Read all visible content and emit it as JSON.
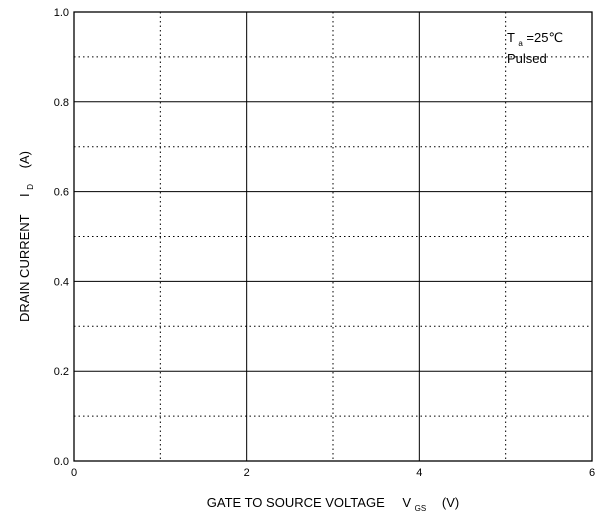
{
  "chart_data": {
    "type": "line",
    "title": "",
    "xlabel": {
      "main": "GATE TO SOURCE VOLTAGE",
      "symbol": "V",
      "subscript": "GS",
      "unit": "(V)"
    },
    "ylabel": {
      "main": "DRAIN CURRENT",
      "symbol": "I",
      "subscript": "D",
      "unit": "(A)"
    },
    "xlim": [
      0,
      6
    ],
    "ylim": [
      0,
      1.0
    ],
    "x_ticks": [
      0,
      2,
      4,
      6
    ],
    "x_tick_labels": [
      "0",
      "2",
      "4",
      "6"
    ],
    "y_ticks": [
      0,
      0.2,
      0.4,
      0.6,
      0.8,
      1.0
    ],
    "y_tick_labels": [
      "0.0",
      "0.2",
      "0.4",
      "0.6",
      "0.8",
      "1.0"
    ],
    "x_minor_grid": [
      1,
      3,
      5
    ],
    "y_minor_grid": [
      0.1,
      0.3,
      0.5,
      0.7,
      0.9
    ],
    "grid": true,
    "series": [],
    "annotations": {
      "condition_symbol": "T",
      "condition_subscript": "a",
      "condition_value": "=25℃",
      "condition_mode": "Pulsed"
    }
  }
}
